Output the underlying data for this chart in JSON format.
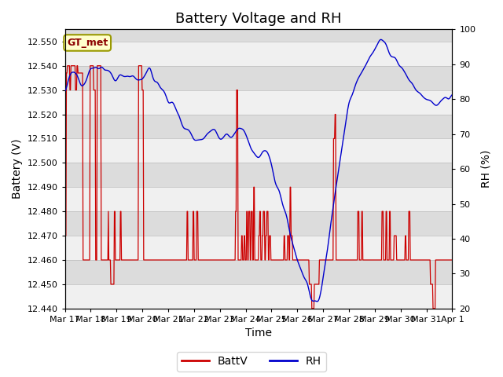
{
  "title": "Battery Voltage and RH",
  "xlabel": "Time",
  "ylabel_left": "Battery (V)",
  "ylabel_right": "RH (%)",
  "ylim_left": [
    12.44,
    12.555
  ],
  "ylim_right": [
    20,
    100
  ],
  "yticks_left": [
    12.44,
    12.45,
    12.46,
    12.47,
    12.48,
    12.49,
    12.5,
    12.51,
    12.52,
    12.53,
    12.54,
    12.55
  ],
  "yticks_right": [
    20,
    30,
    40,
    50,
    60,
    70,
    80,
    90,
    100
  ],
  "batt_color": "#cc0000",
  "rh_color": "#0000cc",
  "bg_dark": "#dcdcdc",
  "bg_light": "#f0f0f0",
  "legend_label_batt": "BattV",
  "legend_label_rh": "RH",
  "annotation_text": "GT_met",
  "annotation_bg": "#ffffcc",
  "annotation_border": "#999900",
  "annotation_text_color": "#8b0000",
  "title_fontsize": 13,
  "axis_label_fontsize": 10,
  "tick_fontsize": 8,
  "legend_fontsize": 10,
  "x_tick_labels": [
    "Mar 17",
    "Mar 18",
    "Mar 19",
    "Mar 20",
    "Mar 21",
    "Mar 22",
    "Mar 23",
    "Mar 24",
    "Mar 25",
    "Mar 26",
    "Mar 27",
    "Mar 28",
    "Mar 29",
    "Mar 30",
    "Mar 31",
    "Apr 1"
  ],
  "n_days": 16,
  "grid_color": "#bbbbbb"
}
